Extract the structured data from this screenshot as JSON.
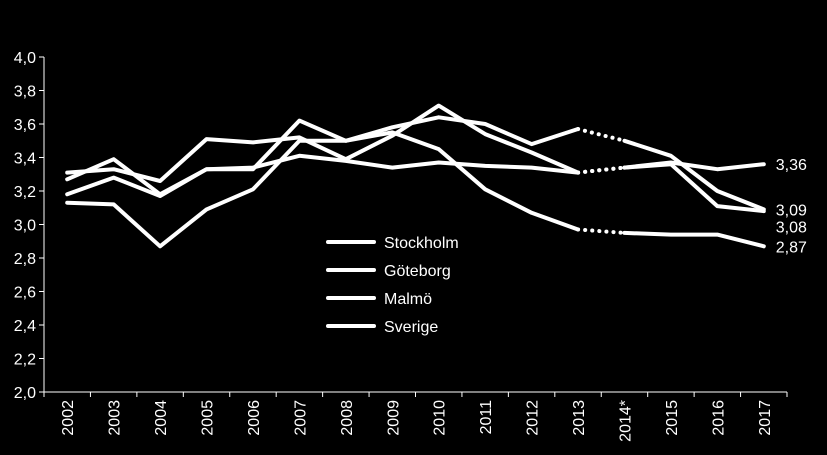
{
  "chart_data": {
    "type": "line",
    "title": "",
    "xlabel": "",
    "ylabel": "",
    "ylim": [
      2.0,
      4.0
    ],
    "yticks": [
      "2,0",
      "2,2",
      "2,4",
      "2,6",
      "2,8",
      "3,0",
      "3,2",
      "3,4",
      "3,6",
      "3,8",
      "4,0"
    ],
    "categories": [
      "2002",
      "2003",
      "2004",
      "2005",
      "2006",
      "2007",
      "2008",
      "2009",
      "2010",
      "2011",
      "2012",
      "2013",
      "2014*",
      "2015",
      "2016",
      "2017"
    ],
    "legend_position": "center",
    "grid": false,
    "series_color": "#ffffff",
    "series": [
      {
        "name": "Stockholm",
        "values": [
          3.13,
          3.12,
          2.87,
          3.09,
          3.21,
          3.5,
          3.5,
          3.55,
          3.45,
          3.21,
          3.07,
          2.97,
          2.95,
          2.94,
          2.94,
          2.87
        ],
        "end_label": "2,87"
      },
      {
        "name": "Göteborg",
        "values": [
          3.27,
          3.39,
          3.18,
          3.33,
          3.33,
          3.62,
          3.5,
          3.58,
          3.64,
          3.6,
          3.48,
          3.57,
          3.5,
          3.41,
          3.2,
          3.09
        ],
        "end_label": "3,09"
      },
      {
        "name": "Malmö",
        "values": [
          3.31,
          3.33,
          3.26,
          3.51,
          3.49,
          3.52,
          3.39,
          3.53,
          3.71,
          3.54,
          3.43,
          3.31,
          3.34,
          3.36,
          3.11,
          3.08
        ],
        "end_label": "3,08"
      },
      {
        "name": "Sverige",
        "values": [
          3.18,
          3.28,
          3.17,
          3.33,
          3.34,
          3.41,
          3.38,
          3.34,
          3.37,
          3.35,
          3.34,
          3.31,
          3.34,
          3.37,
          3.33,
          3.36
        ],
        "end_label": "3,36"
      }
    ],
    "gap_between": [
      "2013",
      "2014*"
    ],
    "gap_style": "dotted"
  }
}
